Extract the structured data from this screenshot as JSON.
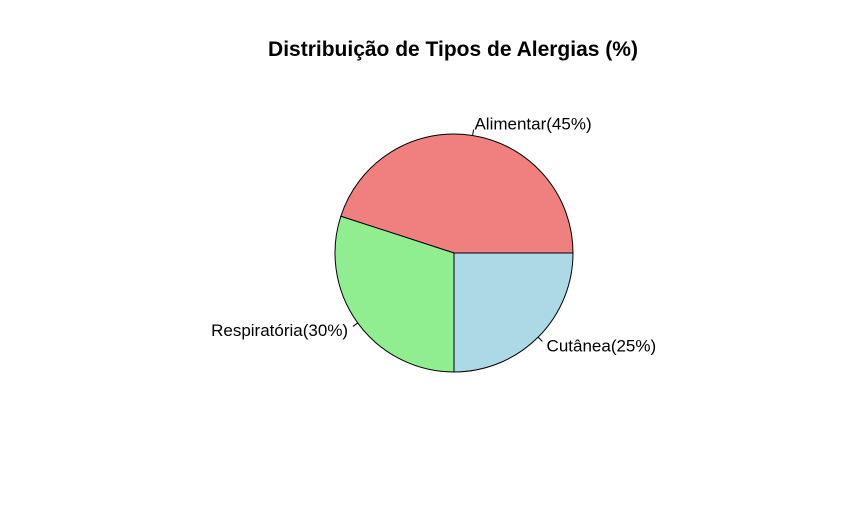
{
  "chart_data": {
    "type": "pie",
    "title": "Distribuição de Tipos de Alergias (%)",
    "slices": [
      {
        "label": "Alimentar(45%)",
        "value": 45,
        "color": "#F08080"
      },
      {
        "label": "Respiratória(30%)",
        "value": 30,
        "color": "#90EE90"
      },
      {
        "label": "Cutânea(25%)",
        "value": 25,
        "color": "#ADD8E6"
      }
    ],
    "start_angle_deg": 0,
    "direction": "counterclockwise"
  }
}
